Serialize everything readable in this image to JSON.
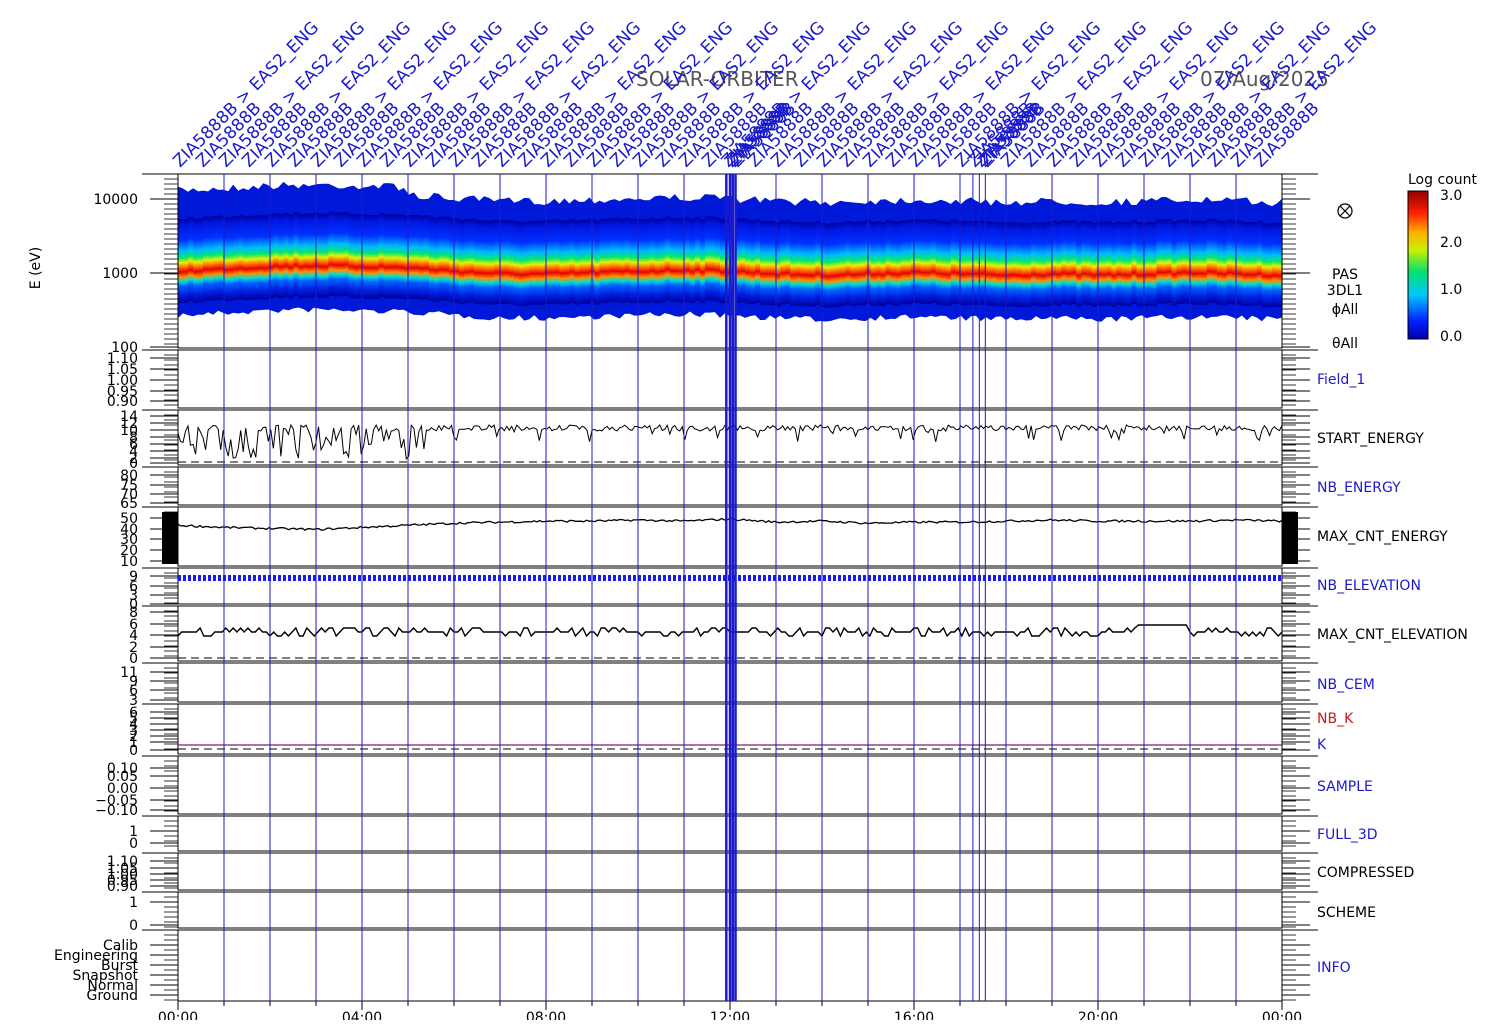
{
  "title": "SOLAR-ORBITER",
  "date": "07/Aug/2025",
  "colors": {
    "frame": "#000000",
    "vline": "#1a1acc",
    "blue_label": "#1a1acc",
    "red_label": "#cc1a1a",
    "k_line": "#8b1a66",
    "elevation_line": "#1a1aee"
  },
  "chart_data": [
    {
      "type": "heatmap",
      "panel": "energy_spectrogram",
      "ylabel": "E (eV)",
      "yscale": "log",
      "ylim": [
        100,
        20000
      ],
      "yticks": [
        "10000",
        "1000",
        "100"
      ],
      "right_labels": [
        "PAS",
        "3DL1",
        "ϕAll",
        "θAll"
      ],
      "colorbar": {
        "title": "Log count",
        "range": [
          0.0,
          3.0
        ],
        "ticks": [
          "3.0",
          "2.0",
          "1.0",
          "0.0"
        ]
      },
      "band_center_eV": [
        1300,
        1400,
        1500,
        1550,
        1500,
        1450,
        1300,
        1200,
        1200,
        1250,
        1300,
        1350,
        1300,
        1200,
        1150,
        1200,
        1250,
        1200,
        1150,
        1200,
        1150,
        1200,
        1250,
        1200,
        1150
      ]
    },
    {
      "type": "line",
      "panel": "Field_1",
      "label": "Field_1",
      "label_color": "blue",
      "yticks": [
        "1.10",
        "1.05",
        "1.00",
        "0.95",
        "0.90"
      ]
    },
    {
      "type": "line",
      "panel": "START_ENERGY",
      "label": "START_ENERGY",
      "label_color": "black",
      "yticks": [
        "14",
        "12",
        "10",
        "8",
        "6",
        "4",
        "2",
        "0"
      ]
    },
    {
      "type": "line",
      "panel": "NB_ENERGY",
      "label": "NB_ENERGY",
      "label_color": "blue",
      "yticks": [
        "80",
        "75",
        "70",
        "65"
      ]
    },
    {
      "type": "line",
      "panel": "MAX_CNT_ENERGY",
      "label": "MAX_CNT_ENERGY",
      "label_color": "black",
      "yticks": [
        "50",
        "40",
        "30",
        "20",
        "10"
      ],
      "values": [
        44,
        42,
        41,
        40,
        42,
        44,
        46,
        47,
        48,
        48,
        49,
        48,
        50,
        47,
        48,
        46,
        47,
        47,
        48,
        49,
        48,
        48,
        48,
        49,
        48
      ]
    },
    {
      "type": "line",
      "panel": "NB_ELEVATION",
      "label": "NB_ELEVATION",
      "label_color": "blue",
      "yticks": [
        "9",
        "6",
        "3",
        "0"
      ]
    },
    {
      "type": "line",
      "panel": "MAX_CNT_ELEVATION",
      "label": "MAX_CNT_ELEVATION",
      "label_color": "black",
      "yticks": [
        "8",
        "6",
        "4",
        "2",
        "0"
      ]
    },
    {
      "type": "line",
      "panel": "NB_CEM",
      "label": "NB_CEM",
      "label_color": "blue",
      "yticks": [
        "11",
        "9",
        "6",
        "3"
      ]
    },
    {
      "type": "line",
      "panel": "NB_K_K",
      "labels": [
        "NB_K",
        "K"
      ],
      "label_colors": [
        "red",
        "blue"
      ],
      "yticks": [
        "6",
        "5",
        "4",
        "3",
        "2",
        "1",
        "0"
      ]
    },
    {
      "type": "line",
      "panel": "SAMPLE",
      "label": "SAMPLE",
      "label_color": "blue",
      "yticks": [
        "0.10",
        "0.05",
        "0.00",
        "−0.05",
        "−0.10"
      ]
    },
    {
      "type": "line",
      "panel": "FULL_3D",
      "label": "FULL_3D",
      "label_color": "blue",
      "yticks": [
        "1",
        "0"
      ]
    },
    {
      "type": "line",
      "panel": "COMPRESSED",
      "label": "COMPRESSED",
      "label_color": "black",
      "yticks": [
        "1.10",
        "1.05",
        "1.00",
        "0.95",
        "0.90"
      ]
    },
    {
      "type": "line",
      "panel": "SCHEME",
      "label": "SCHEME",
      "label_color": "black",
      "yticks": [
        "1",
        "0"
      ]
    },
    {
      "type": "line",
      "panel": "INFO",
      "label": "INFO",
      "label_color": "blue",
      "yticks": [
        "Calib",
        "Engineering",
        "Burst",
        "Snapshot",
        "Normal",
        "Ground"
      ]
    }
  ],
  "x_axis": {
    "ticks": [
      "00:00",
      "04:00",
      "08:00",
      "12:00",
      "16:00",
      "20:00",
      "00:00"
    ]
  },
  "annotations": {
    "full": "ZIA5888B > EAS2_ENG",
    "short": "ZIA5888B",
    "count_full": 24,
    "count_short": 24,
    "cluster_1200": 4,
    "cluster_1720": 3
  }
}
